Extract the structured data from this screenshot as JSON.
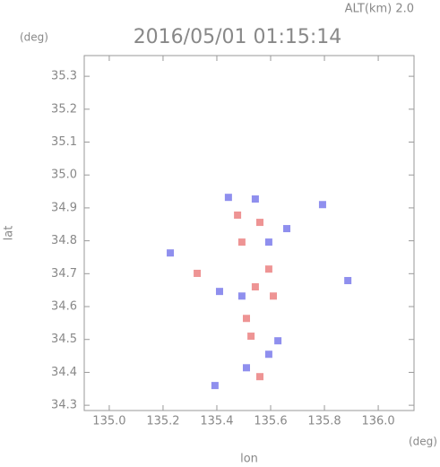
{
  "chart_data": {
    "type": "scatter",
    "title": "2016/05/01 01:15:14",
    "subtitle": "ALT(km) 2.0",
    "x_label": "lon",
    "y_label": "lat",
    "x_unit": "(deg)",
    "y_unit": "(deg)",
    "xlim": [
      134.907,
      136.133
    ],
    "ylim": [
      34.284,
      35.363
    ],
    "xticks": [
      {
        "value": 135.0,
        "label": "135.0"
      },
      135.2,
      135.4,
      135.6,
      135.8,
      {
        "value": 136.0,
        "label": "136.0"
      }
    ],
    "yticks": [
      34.3,
      34.4,
      34.5,
      34.6,
      34.7,
      34.8,
      34.9,
      {
        "value": 35.0,
        "label": "35.0"
      },
      35.1,
      35.2,
      35.3
    ],
    "series": [
      {
        "color": "#6a6ae8",
        "x": [
          135.443,
          135.543,
          135.793,
          135.227,
          135.887,
          135.493,
          135.41,
          135.51,
          135.593,
          135.393,
          135.627,
          135.66,
          135.593
        ],
        "y": [
          34.932,
          34.927,
          34.91,
          34.763,
          34.679,
          34.632,
          34.646,
          34.414,
          34.455,
          34.36,
          34.496,
          34.837,
          34.796
        ]
      },
      {
        "color": "#e87070",
        "x": [
          135.56,
          135.593,
          135.51,
          135.543,
          135.477,
          135.56,
          135.327,
          135.527,
          135.61,
          135.493
        ],
        "y": [
          34.856,
          34.714,
          34.564,
          34.66,
          34.878,
          34.387,
          34.701,
          34.51,
          34.632,
          34.796
        ]
      }
    ]
  }
}
